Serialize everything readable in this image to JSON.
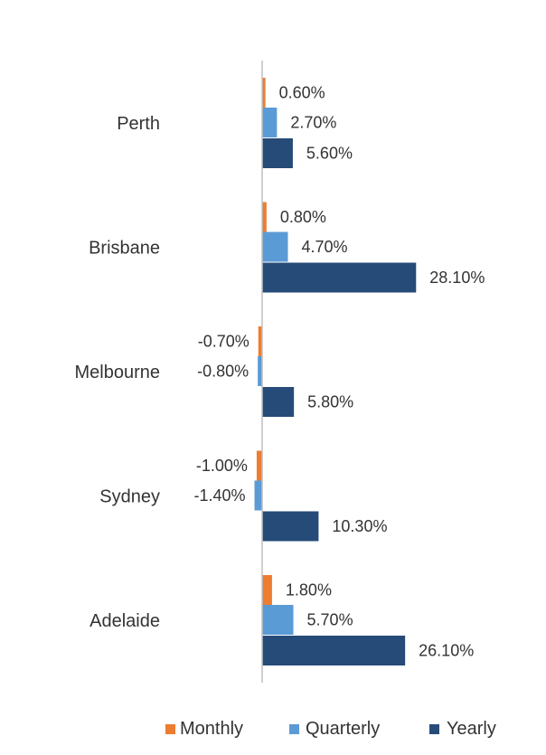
{
  "chart_data": {
    "type": "bar",
    "orientation": "horizontal",
    "categories": [
      "Perth",
      "Brisbane",
      "Melbourne",
      "Sydney",
      "Adelaide"
    ],
    "series": [
      {
        "name": "Monthly",
        "color": "#ED7D31",
        "values": [
          0.6,
          0.8,
          -0.7,
          -1.0,
          1.8
        ],
        "labels": [
          "0.60%",
          "0.80%",
          "-0.70%",
          "-1.00%",
          "1.80%"
        ]
      },
      {
        "name": "Quarterly",
        "color": "#5B9BD5",
        "values": [
          2.7,
          4.7,
          -0.8,
          -1.4,
          5.7
        ],
        "labels": [
          "2.70%",
          "4.70%",
          "-0.80%",
          "-1.40%",
          "5.70%"
        ]
      },
      {
        "name": "Yearly",
        "color": "#264B78",
        "values": [
          5.6,
          28.1,
          5.8,
          10.3,
          26.1
        ],
        "labels": [
          "5.60%",
          "28.10%",
          "5.80%",
          "10.30%",
          "26.10%"
        ]
      }
    ],
    "axis_color": "#BFBFBF",
    "legend_position": "bottom-right",
    "grid": false
  }
}
